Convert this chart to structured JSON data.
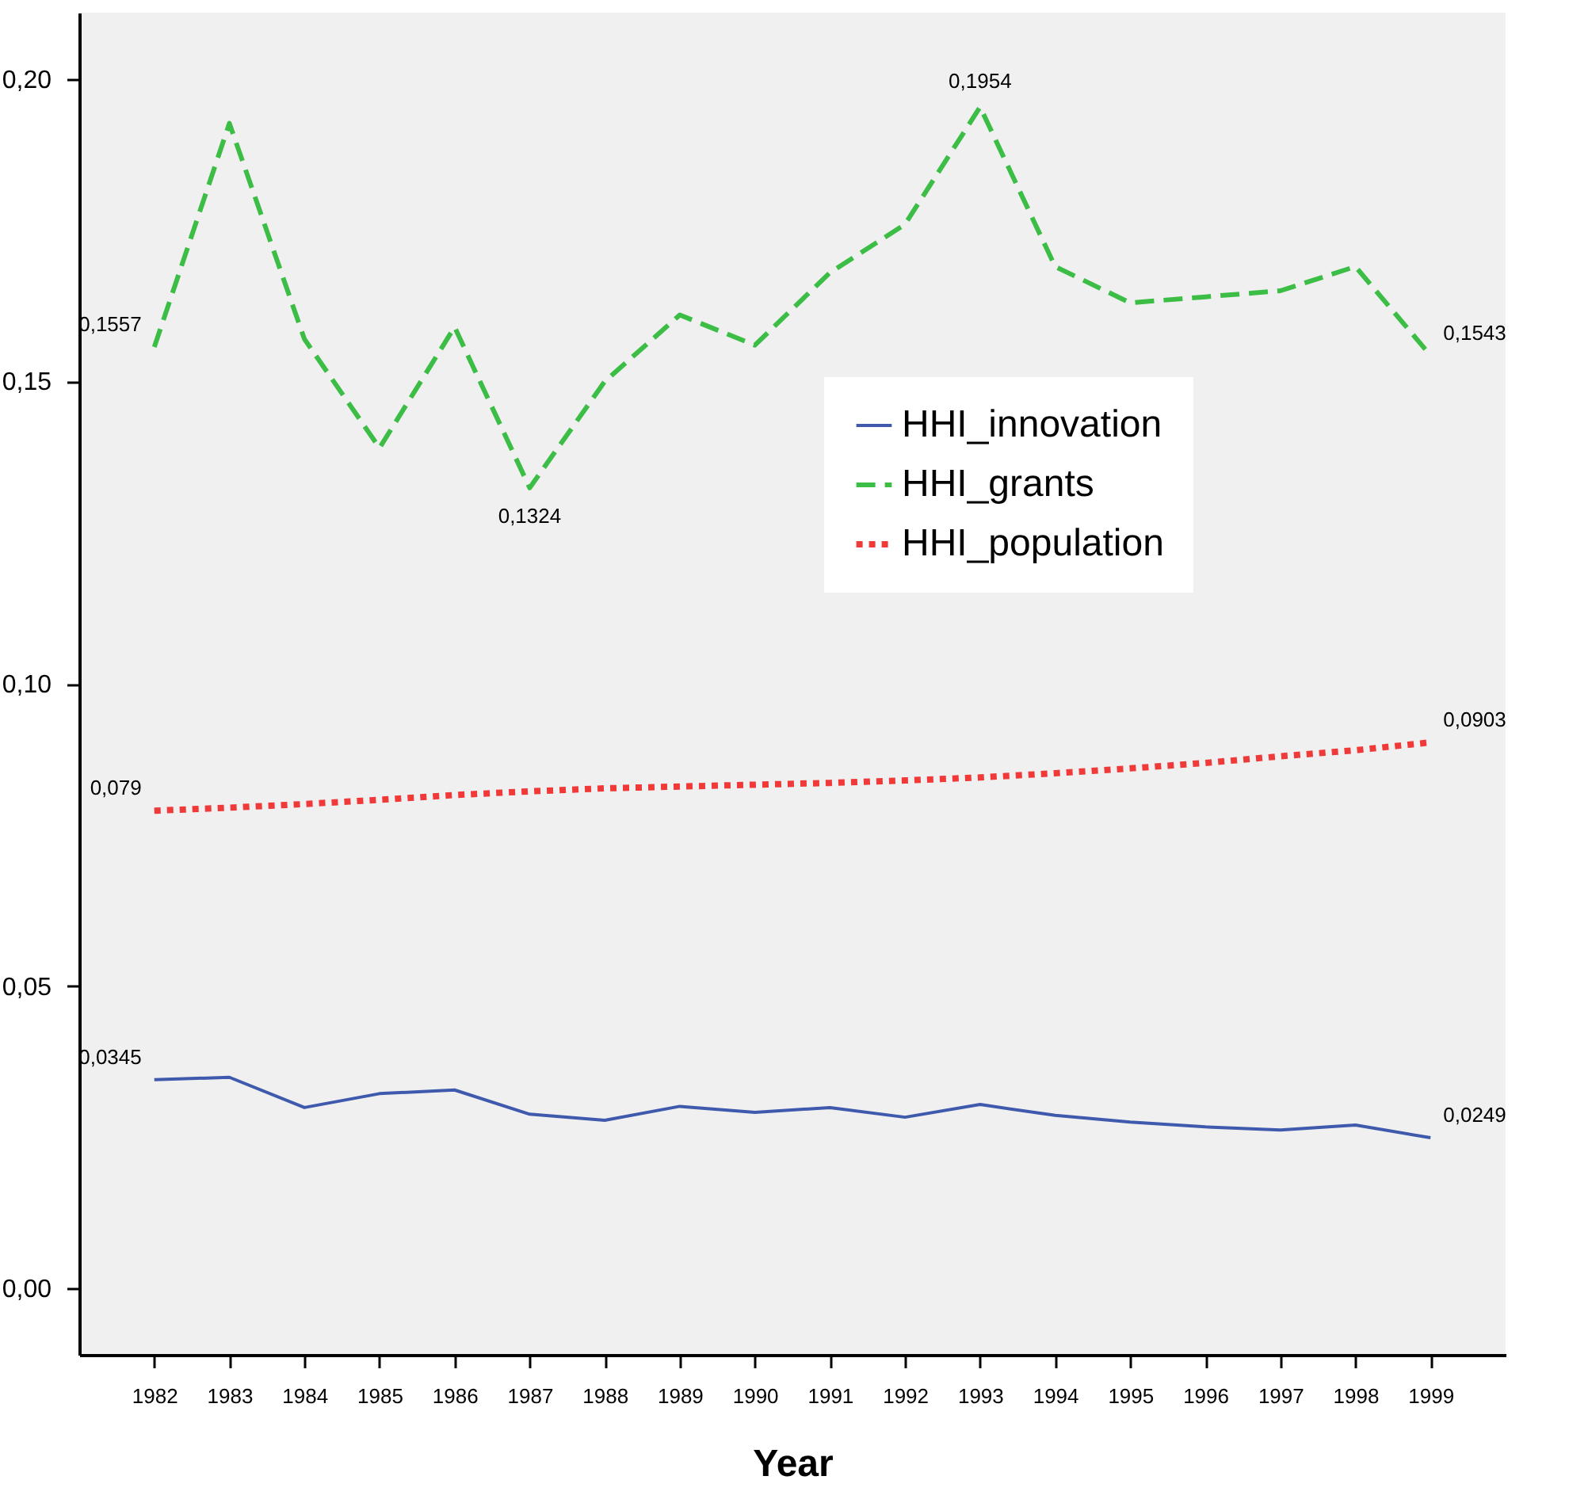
{
  "chart_data": {
    "type": "line",
    "xlabel": "Year",
    "categories": [
      "1982",
      "1983",
      "1984",
      "1985",
      "1986",
      "1987",
      "1988",
      "1989",
      "1990",
      "1991",
      "1992",
      "1993",
      "1994",
      "1995",
      "1996",
      "1997",
      "1998",
      "1999"
    ],
    "series": [
      {
        "name": "HHI_innovation",
        "color": "#3f5aad",
        "line_style": "solid",
        "values": [
          0.0345,
          0.0349,
          0.0299,
          0.0322,
          0.0328,
          0.0288,
          0.0278,
          0.0301,
          0.0291,
          0.0299,
          0.0283,
          0.0304,
          0.0286,
          0.0275,
          0.0267,
          0.0262,
          0.027,
          0.0249
        ],
        "value_labels": [
          "0,0345",
          null,
          null,
          null,
          null,
          null,
          null,
          null,
          null,
          null,
          null,
          null,
          null,
          null,
          null,
          null,
          null,
          "0,0249"
        ]
      },
      {
        "name": "HHI_grants",
        "color": "#3cbe46",
        "line_style": "dashed",
        "values": [
          0.1557,
          0.1927,
          0.157,
          0.139,
          0.159,
          0.1324,
          0.15,
          0.161,
          0.156,
          0.168,
          0.176,
          0.1954,
          0.169,
          0.163,
          0.164,
          0.165,
          0.169,
          0.1543
        ],
        "value_labels": [
          "0,1557",
          null,
          null,
          null,
          null,
          "0,1324",
          null,
          null,
          null,
          null,
          null,
          "0,1954",
          null,
          null,
          null,
          null,
          null,
          "0,1543"
        ]
      },
      {
        "name": "HHI_population",
        "color": "#f03a3a",
        "line_style": "dotted",
        "values": [
          0.079,
          0.0795,
          0.0801,
          0.0808,
          0.0816,
          0.0822,
          0.0827,
          0.083,
          0.0833,
          0.0836,
          0.084,
          0.0845,
          0.0852,
          0.086,
          0.0869,
          0.088,
          0.089,
          0.0903
        ],
        "value_labels": [
          "0,079",
          null,
          null,
          null,
          null,
          null,
          null,
          null,
          null,
          null,
          null,
          null,
          null,
          null,
          null,
          null,
          null,
          "0,0903"
        ]
      }
    ],
    "ylim": [
      -0.011,
      0.211
    ],
    "yticks": [
      {
        "value": 0,
        "label": "0,00"
      },
      {
        "value": 0.05,
        "label": "0,05"
      },
      {
        "value": 0.1,
        "label": "0,10"
      },
      {
        "value": 0.15,
        "label": "0,15"
      },
      {
        "value": 0.2,
        "label": "0,20"
      }
    ],
    "grid": false,
    "legend": "right",
    "marker": "none"
  }
}
